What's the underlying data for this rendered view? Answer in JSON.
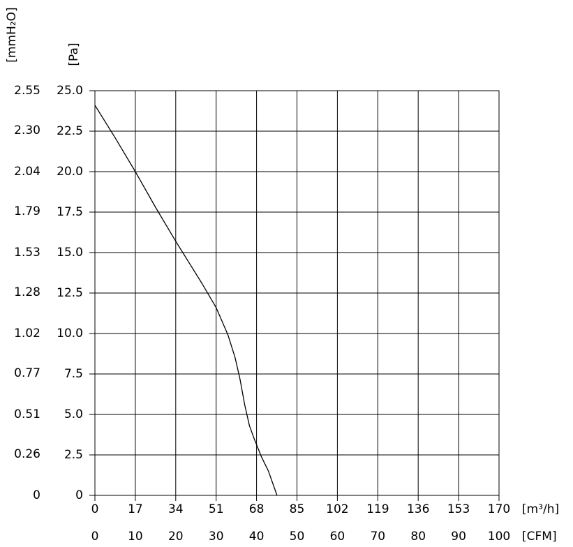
{
  "chart_data": {
    "type": "line",
    "xlabel": "[m³/h]",
    "x2label": "[CFM]",
    "ylabel": "[Pa]",
    "y2label": "[mmH₂O]",
    "x": [
      0,
      8.5,
      17,
      25.5,
      34,
      45,
      51,
      56,
      59,
      61,
      63,
      65,
      67,
      70,
      73,
      76.6
    ],
    "values": [
      24.1,
      22.1,
      20.0,
      17.8,
      15.7,
      13.1,
      11.6,
      9.9,
      8.5,
      7.2,
      5.6,
      4.3,
      3.5,
      2.4,
      1.5,
      0
    ],
    "color": "#000000",
    "xlim": [
      0,
      170
    ],
    "xticks": [
      0,
      17,
      34,
      51,
      68,
      85,
      102,
      119,
      136,
      153,
      170
    ],
    "x2lim": [
      0,
      100
    ],
    "x2ticks": [
      0,
      10,
      20,
      30,
      40,
      50,
      60,
      70,
      80,
      90,
      100
    ],
    "ylim": [
      0,
      25
    ],
    "yticks": [
      0,
      {
        "value": 2.5,
        "label": "2.5"
      },
      {
        "value": 5,
        "label": "5.0"
      },
      {
        "value": 7.5,
        "label": "7.5"
      },
      {
        "value": 10,
        "label": "10.0"
      },
      {
        "value": 12.5,
        "label": "12.5"
      },
      {
        "value": 15,
        "label": "15.0"
      },
      {
        "value": 17.5,
        "label": "17.5"
      },
      {
        "value": 20,
        "label": "20.0"
      },
      {
        "value": 22.5,
        "label": "22.5"
      },
      {
        "value": 25,
        "label": "25.0"
      }
    ],
    "y2lim": [
      0,
      2.55
    ],
    "y2ticks": [
      0,
      0.26,
      0.51,
      0.77,
      1.02,
      1.28,
      1.53,
      1.79,
      2.04,
      {
        "value": 2.3,
        "label": "2.30"
      },
      2.55
    ],
    "grid": true
  }
}
